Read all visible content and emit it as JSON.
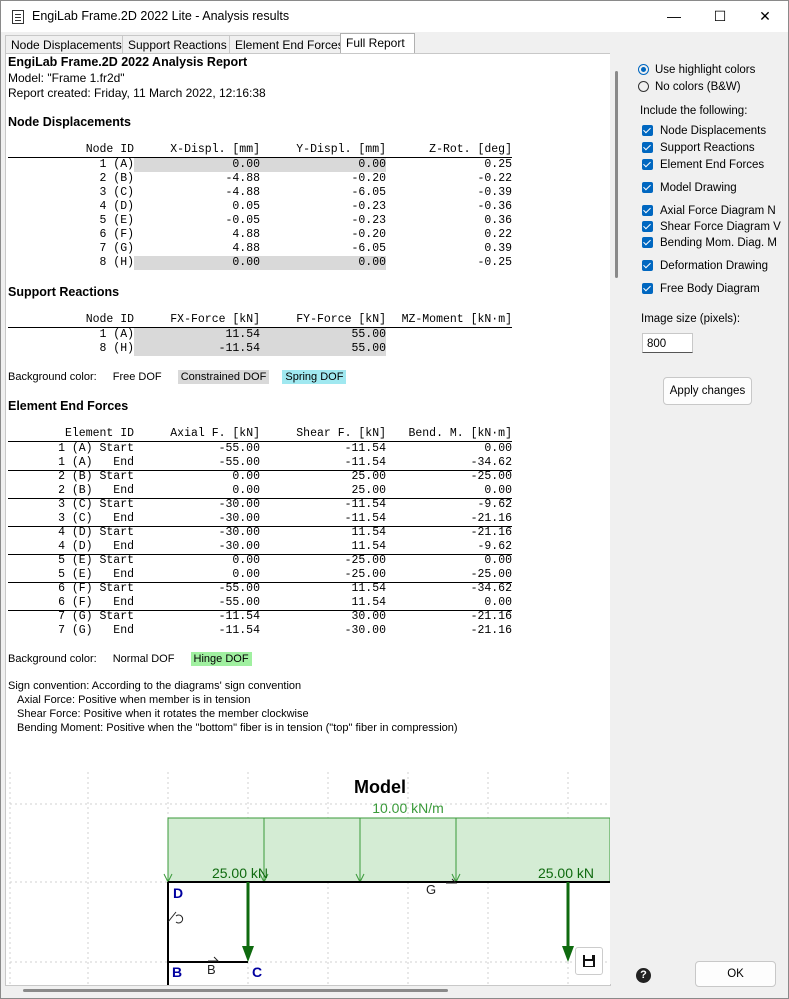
{
  "window": {
    "title": "EngiLab Frame.2D 2022 Lite - Analysis results",
    "minimize": "—",
    "maximize": "☐",
    "close": "✕"
  },
  "tabs": [
    {
      "label": "Node Displacements"
    },
    {
      "label": "Support Reactions"
    },
    {
      "label": "Element End Forces"
    },
    {
      "label": "Full Report"
    }
  ],
  "report": {
    "title": "EngiLab Frame.2D 2022 Analysis Report",
    "model": "Model: \"Frame 1.fr2d\"",
    "created": "Report created: Friday, 11 March 2022, 12:16:38",
    "node_displacements": {
      "heading": "Node Displacements",
      "columns": [
        "Node ID",
        "X-Displ. [mm]",
        "Y-Displ. [mm]",
        "Z-Rot. [deg]"
      ],
      "rows": [
        [
          "1 (A)",
          "0.00",
          "0.00",
          "0.25"
        ],
        [
          "2 (B)",
          "-4.88",
          "-0.20",
          "-0.22"
        ],
        [
          "3 (C)",
          "-4.88",
          "-6.05",
          "-0.39"
        ],
        [
          "4 (D)",
          "0.05",
          "-0.23",
          "-0.36"
        ],
        [
          "5 (E)",
          "-0.05",
          "-0.23",
          "0.36"
        ],
        [
          "6 (F)",
          "4.88",
          "-0.20",
          "0.22"
        ],
        [
          "7 (G)",
          "4.88",
          "-6.05",
          "0.39"
        ],
        [
          "8 (H)",
          "0.00",
          "0.00",
          "-0.25"
        ]
      ]
    },
    "support_reactions": {
      "heading": "Support Reactions",
      "columns": [
        "Node ID",
        "FX-Force [kN]",
        "FY-Force [kN]",
        "MZ-Moment [kN·m]"
      ],
      "rows": [
        [
          "1 (A)",
          "11.54",
          "55.00",
          ""
        ],
        [
          "8 (H)",
          "-11.54",
          "55.00",
          ""
        ]
      ]
    },
    "legend1": {
      "label": "Background color:",
      "free": "Free DOF",
      "constrained": "Constrained DOF",
      "spring": "Spring DOF"
    },
    "element_end_forces": {
      "heading": "Element End Forces",
      "columns": [
        "Element ID",
        "Axial F. [kN]",
        "Shear F. [kN]",
        "Bend. M. [kN·m]"
      ],
      "rows": [
        [
          "1 (A) Start",
          "-55.00",
          "-11.54",
          "0.00"
        ],
        [
          "1 (A)   End",
          "-55.00",
          "-11.54",
          "-34.62"
        ],
        [
          "2 (B) Start",
          "0.00",
          "25.00",
          "-25.00"
        ],
        [
          "2 (B)   End",
          "0.00",
          "25.00",
          "0.00"
        ],
        [
          "3 (C) Start",
          "-30.00",
          "-11.54",
          "-9.62"
        ],
        [
          "3 (C)   End",
          "-30.00",
          "-11.54",
          "-21.16"
        ],
        [
          "4 (D) Start",
          "-30.00",
          "11.54",
          "-21.16"
        ],
        [
          "4 (D)   End",
          "-30.00",
          "11.54",
          "-9.62"
        ],
        [
          "5 (E) Start",
          "0.00",
          "-25.00",
          "0.00"
        ],
        [
          "5 (E)   End",
          "0.00",
          "-25.00",
          "-25.00"
        ],
        [
          "6 (F) Start",
          "-55.00",
          "11.54",
          "-34.62"
        ],
        [
          "6 (F)   End",
          "-55.00",
          "11.54",
          "0.00"
        ],
        [
          "7 (G) Start",
          "-11.54",
          "30.00",
          "-21.16"
        ],
        [
          "7 (G)   End",
          "-11.54",
          "-30.00",
          "-21.16"
        ]
      ]
    },
    "legend2": {
      "label": "Background color:",
      "normal": "Normal DOF",
      "hinge": "Hinge DOF"
    },
    "sign_convention": [
      "Sign convention: According to the diagrams' sign convention",
      "Axial Force: Positive when member is in tension",
      "Shear Force: Positive when it rotates the member clockwise",
      "Bending Moment: Positive when the \"bottom\" fiber is in tension (\"top\" fiber in compression)"
    ],
    "model_drawing": {
      "title": "Model",
      "load_label": "10.00 kN/m",
      "point_load_1": "25.00 kN",
      "point_load_2": "25.00 kN",
      "nodes": {
        "b": "B",
        "c": "C",
        "d": "D",
        "g": "G"
      },
      "member_b": "B"
    }
  },
  "sidebar": {
    "color_options": [
      {
        "label": "Use highlight colors",
        "selected": true
      },
      {
        "label": "No colors (B&W)",
        "selected": false
      }
    ],
    "include_label": "Include the following:",
    "include_items": [
      {
        "label": "Node Displacements",
        "checked": true
      },
      {
        "label": "Support Reactions",
        "checked": true
      },
      {
        "label": "Element End Forces",
        "checked": true
      },
      {
        "label": "Model Drawing",
        "checked": true
      },
      {
        "label": "Axial Force Diagram N",
        "checked": true
      },
      {
        "label": "Shear Force Diagram V",
        "checked": true
      },
      {
        "label": "Bending Mom. Diag. M",
        "checked": true
      },
      {
        "label": "Deformation Drawing",
        "checked": true
      },
      {
        "label": "Free Body Diagram",
        "checked": true
      }
    ],
    "image_size_label": "Image size (pixels):",
    "image_size_value": "800",
    "apply_label": "Apply changes"
  },
  "footer": {
    "ok_label": "OK",
    "help_icon": "?"
  },
  "colors": {
    "constrained": "#d9d9d9",
    "spring": "#a0e8f0",
    "hinge": "#a0f0a0",
    "load_fill": "#d4ecd4",
    "load_line": "#3a9a3a",
    "member": "#000000",
    "node_label": "#0000a0",
    "point_load": "#0f6a0f",
    "accent": "#0067c0"
  }
}
